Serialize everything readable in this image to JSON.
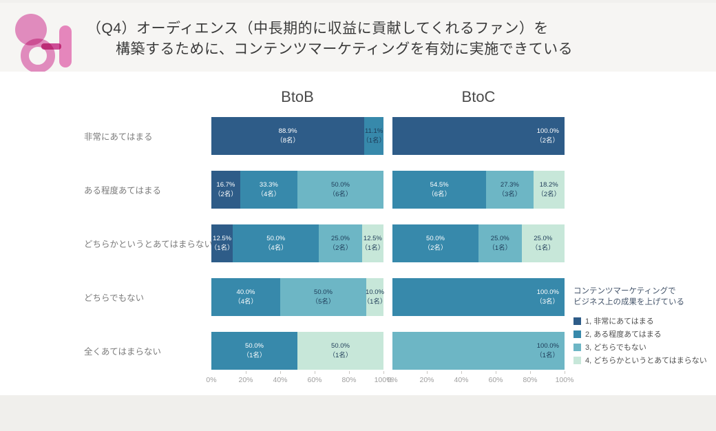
{
  "header": {
    "title_line1": "（Q4）オーディエンス（中長期的に収益に貢献してくれるファン）を",
    "title_line2": "構築するために、コンテンツマーケティングを有効に実施できている",
    "logo": "pink-abstract-logo"
  },
  "chart_data": {
    "type": "bar",
    "orientation": "horizontal",
    "stacked": true,
    "unit": "percent",
    "xlim": [
      0,
      100
    ],
    "x_ticks": [
      "0%",
      "20%",
      "40%",
      "60%",
      "80%",
      "100%"
    ],
    "grid": false,
    "groups": [
      "BtoB",
      "BtoC"
    ],
    "categories": [
      "非常にあてはまる",
      "ある程度あてはまる",
      "どちらかというとあてはまらない",
      "どちらでもない",
      "全くあてはまらない"
    ],
    "label_colors": {
      "light": "#ffffff",
      "dark": "#1d3a57"
    },
    "legend": {
      "position": "right",
      "title_line1": "コンテンツマーケティングで",
      "title_line2": "ビジネス上の成果を上げている",
      "items": [
        {
          "label": "1, 非常にあてはまる",
          "color": "#2e5c88"
        },
        {
          "label": "2, ある程度あてはまる",
          "color": "#3789ab"
        },
        {
          "label": "3, どちらでもない",
          "color": "#6db6c5"
        },
        {
          "label": "4, どちらかというとあてはまらない",
          "color": "#c7e7d9"
        }
      ]
    },
    "rows": [
      {
        "label": "非常にあてはまる",
        "btob": [
          {
            "value": 88.9,
            "pct_label": "88.9%",
            "count_label": "（8名）",
            "cat": 1,
            "tone": "light"
          },
          {
            "value": 11.1,
            "pct_label": "11.1%",
            "count_label": "（1名）",
            "cat": 2,
            "tone": "dark"
          }
        ],
        "btoc": [
          {
            "value": 100.0,
            "pct_label": "100.0%",
            "count_label": "（2名）",
            "cat": 1,
            "tone": "light",
            "align": "right"
          }
        ]
      },
      {
        "label": "ある程度あてはまる",
        "btob": [
          {
            "value": 16.7,
            "pct_label": "16.7%",
            "count_label": "（2名）",
            "cat": 1,
            "tone": "light"
          },
          {
            "value": 33.3,
            "pct_label": "33.3%",
            "count_label": "（4名）",
            "cat": 2,
            "tone": "light"
          },
          {
            "value": 50.0,
            "pct_label": "50.0%",
            "count_label": "（6名）",
            "cat": 3,
            "tone": "dark"
          }
        ],
        "btoc": [
          {
            "value": 54.5,
            "pct_label": "54.5%",
            "count_label": "（6名）",
            "cat": 2,
            "tone": "light"
          },
          {
            "value": 27.3,
            "pct_label": "27.3%",
            "count_label": "（3名）",
            "cat": 3,
            "tone": "dark"
          },
          {
            "value": 18.2,
            "pct_label": "18.2%",
            "count_label": "（2名）",
            "cat": 4,
            "tone": "dark"
          }
        ]
      },
      {
        "label": "どちらかというとあてはまらない",
        "btob": [
          {
            "value": 12.5,
            "pct_label": "12.5%",
            "count_label": "（1名）",
            "cat": 1,
            "tone": "light"
          },
          {
            "value": 50.0,
            "pct_label": "50.0%",
            "count_label": "（4名）",
            "cat": 2,
            "tone": "light"
          },
          {
            "value": 25.0,
            "pct_label": "25.0%",
            "count_label": "（2名）",
            "cat": 3,
            "tone": "dark"
          },
          {
            "value": 12.5,
            "pct_label": "12.5%",
            "count_label": "（1名）",
            "cat": 4,
            "tone": "dark"
          }
        ],
        "btoc": [
          {
            "value": 50.0,
            "pct_label": "50.0%",
            "count_label": "（2名）",
            "cat": 2,
            "tone": "light"
          },
          {
            "value": 25.0,
            "pct_label": "25.0%",
            "count_label": "（1名）",
            "cat": 3,
            "tone": "dark"
          },
          {
            "value": 25.0,
            "pct_label": "25.0%",
            "count_label": "（1名）",
            "cat": 4,
            "tone": "dark"
          }
        ]
      },
      {
        "label": "どちらでもない",
        "btob": [
          {
            "value": 40.0,
            "pct_label": "40.0%",
            "count_label": "（4名）",
            "cat": 2,
            "tone": "light"
          },
          {
            "value": 50.0,
            "pct_label": "50.0%",
            "count_label": "（5名）",
            "cat": 3,
            "tone": "dark"
          },
          {
            "value": 10.0,
            "pct_label": "10.0%",
            "count_label": "（1名）",
            "cat": 4,
            "tone": "dark"
          }
        ],
        "btoc": [
          {
            "value": 100.0,
            "pct_label": "100.0%",
            "count_label": "（3名）",
            "cat": 2,
            "tone": "light",
            "align": "right"
          }
        ]
      },
      {
        "label": "全くあてはまらない",
        "btob": [
          {
            "value": 50.0,
            "pct_label": "50.0%",
            "count_label": "（1名）",
            "cat": 2,
            "tone": "light"
          },
          {
            "value": 50.0,
            "pct_label": "50.0%",
            "count_label": "（1名）",
            "cat": 4,
            "tone": "dark"
          }
        ],
        "btoc": [
          {
            "value": 100.0,
            "pct_label": "100.0%",
            "count_label": "（1名）",
            "cat": 3,
            "tone": "dark",
            "align": "right"
          }
        ]
      }
    ]
  }
}
